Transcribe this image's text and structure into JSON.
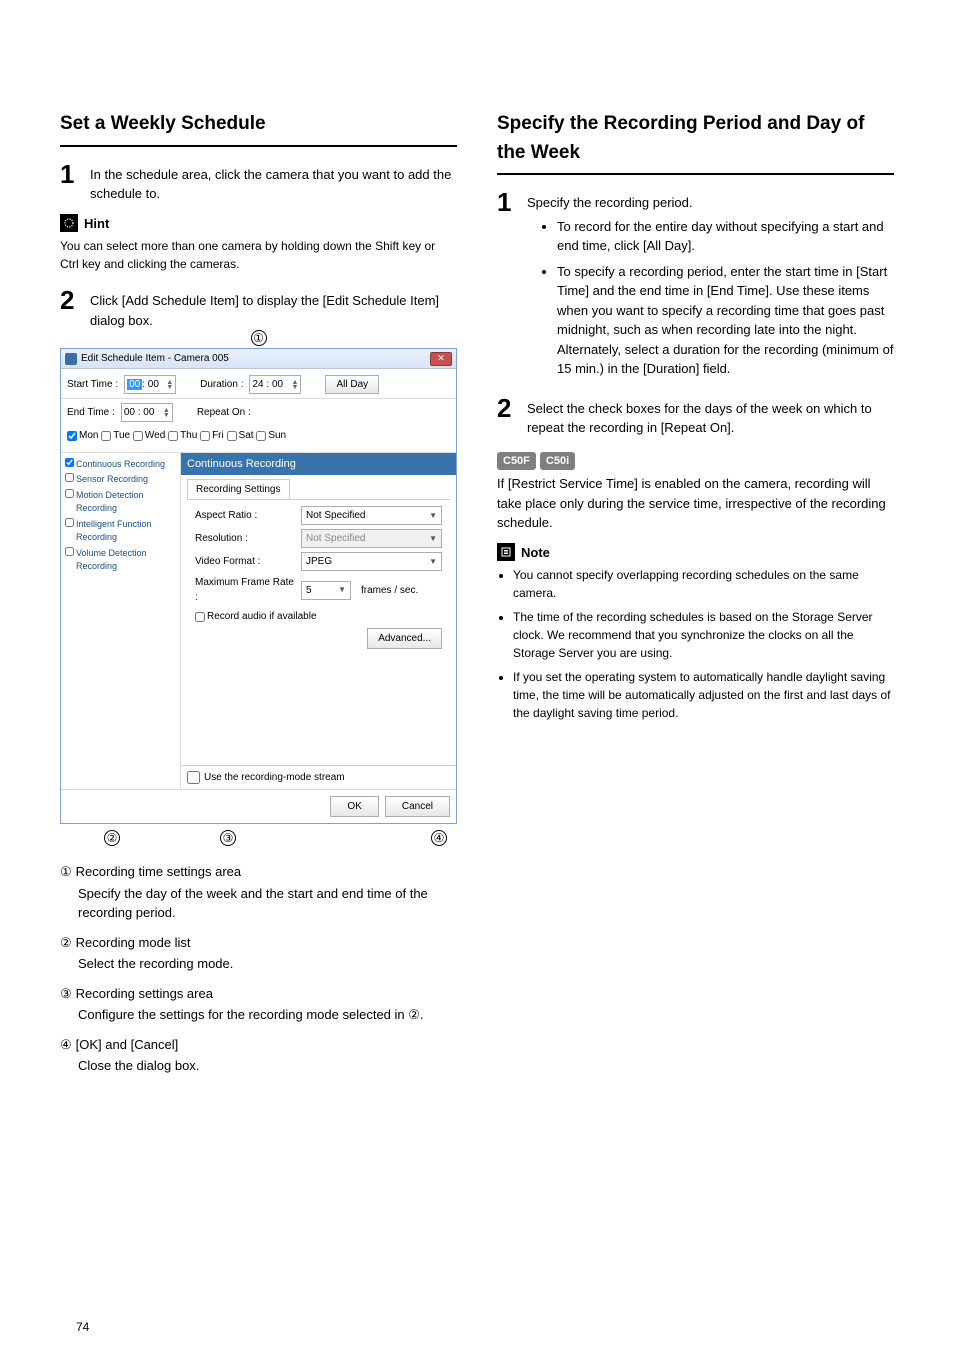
{
  "page_number": "74",
  "left": {
    "title": "Set a Weekly Schedule",
    "step1": "In the schedule area, click the camera that you want to add the schedule to.",
    "hint_label": "Hint",
    "hint_body": "You can select more than one camera by holding down the Shift key or Ctrl key and clicking the cameras.",
    "step2": "Click [Add Schedule Item] to display the [Edit Schedule Item] dialog box.",
    "callouts": {
      "c1": "①",
      "c2": "②",
      "c3": "③",
      "c4": "④"
    },
    "dialog": {
      "title": "Edit Schedule Item - Camera 005",
      "start_label": "Start Time :",
      "start_hh": "00",
      "start_mm": ": 00",
      "end_label": "End Time :",
      "end_time": "00 : 00",
      "duration_label": "Duration :",
      "duration": "24 : 00",
      "allday": "All Day",
      "repeat_label": "Repeat On :",
      "days": [
        "Mon",
        "Tue",
        "Wed",
        "Thu",
        "Fri",
        "Sat",
        "Sun"
      ],
      "modes": [
        "Continuous Recording",
        "Sensor Recording",
        "Motion Detection Recording",
        "Intelligent Function Recording",
        "Volume Detection Recording"
      ],
      "pane_title": "Continuous Recording",
      "tab": "Recording Settings",
      "aspect_label": "Aspect Ratio :",
      "aspect_val": "Not Specified",
      "res_label": "Resolution :",
      "res_val": "Not Specified",
      "vfmt_label": "Video Format :",
      "vfmt_val": "JPEG",
      "mfr_label": "Maximum Frame Rate :",
      "mfr_val": "5",
      "mfr_suffix": "frames / sec.",
      "record_audio": "Record audio if available",
      "advanced": "Advanced...",
      "use_stream": "Use the recording-mode stream",
      "ok": "OK",
      "cancel": "Cancel"
    },
    "legend": [
      {
        "num": "①",
        "title": "Recording time settings area",
        "desc": "Specify the day of the week and the start and end time of the recording period."
      },
      {
        "num": "②",
        "title": "Recording mode list",
        "desc": "Select the recording mode."
      },
      {
        "num": "③",
        "title": "Recording settings area",
        "desc": "Configure the settings for the recording mode selected in ②."
      },
      {
        "num": "④",
        "title": "[OK] and [Cancel]",
        "desc": "Close the dialog box."
      }
    ]
  },
  "right": {
    "title": "Specify the Recording Period and Day of the Week",
    "step1": "Specify the recording period.",
    "bullets": [
      "To record for the entire day without specifying a start and end time, click [All Day].",
      "To specify a recording period, enter the start time in [Start Time] and the end time in [End Time]. Use these items when you want to specify a recording time that goes past midnight, such as when recording late into the night. Alternately, select a duration for the recording (minimum of 15 min.) in the [Duration] field."
    ],
    "step2": "Select the check boxes for the days of the week on which to repeat the recording in [Repeat On].",
    "badges": [
      "C50F",
      "C50i"
    ],
    "badge_text": "If [Restrict Service Time] is enabled on the camera, recording will take place only during the service time, irrespective of the recording schedule.",
    "note_label": "Note",
    "notes": [
      "You cannot specify overlapping recording schedules on the same camera.",
      "The time of the recording schedules is based on the Storage Server clock. We recommend that you synchronize the clocks on all the Storage Server you are using.",
      "If you set the operating system to automatically handle daylight saving time, the time will be automatically adjusted on the first and last days of the daylight saving time period."
    ]
  }
}
